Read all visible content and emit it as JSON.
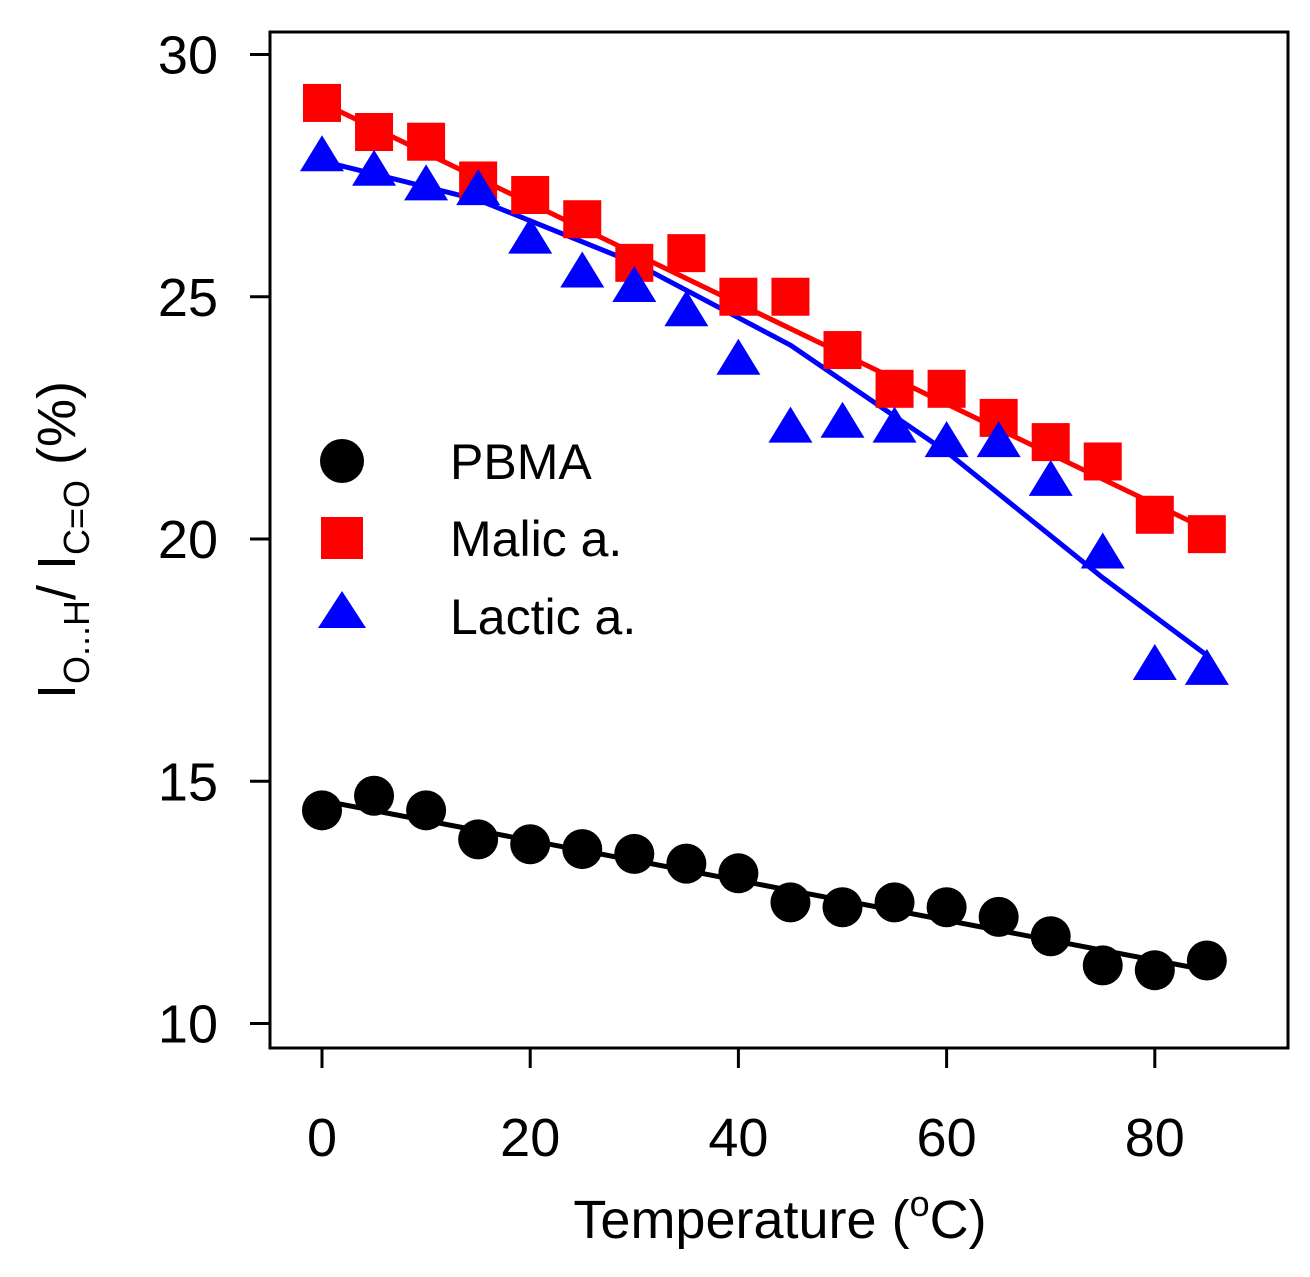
{
  "chart_data": {
    "type": "scatter",
    "xlabel": "Temperature (°C)",
    "xlabel_parts": {
      "main": "Temperature (",
      "sup": "o",
      "tail": "C)"
    },
    "ylabel": "I_{O...H} / I_{C=O} (%)",
    "ylabel_parts": {
      "i1": "I",
      "sub1": "O...H",
      "slash": "/ ",
      "i2": "I",
      "sub2": "C=O",
      "tail": " (%)"
    },
    "xlim": [
      -5,
      92
    ],
    "ylim": [
      9.5,
      30.5
    ],
    "xticks": [
      0,
      20,
      40,
      60,
      80
    ],
    "yticks": [
      10,
      15,
      20,
      25,
      30
    ],
    "legend_position": "center-left",
    "series": [
      {
        "name": "PBMA",
        "marker": "circle",
        "color": "#000000",
        "x": [
          0,
          5,
          10,
          15,
          20,
          25,
          30,
          35,
          40,
          45,
          50,
          55,
          60,
          65,
          70,
          75,
          80,
          85
        ],
        "y": [
          14.4,
          14.7,
          14.4,
          13.8,
          13.7,
          13.6,
          13.5,
          13.3,
          13.1,
          12.5,
          12.4,
          12.5,
          12.4,
          12.2,
          11.8,
          11.2,
          11.1,
          11.3
        ],
        "fit": [
          [
            0,
            14.6
          ],
          [
            85,
            11.1
          ]
        ]
      },
      {
        "name": "Malic a.",
        "marker": "square",
        "color": "#ff0000",
        "x": [
          0,
          5,
          10,
          15,
          20,
          25,
          30,
          35,
          40,
          45,
          50,
          55,
          60,
          65,
          70,
          75,
          80,
          85
        ],
        "y": [
          29.0,
          28.4,
          28.2,
          27.4,
          27.1,
          26.6,
          25.7,
          25.9,
          25.0,
          25.0,
          23.9,
          23.1,
          23.1,
          22.5,
          22.0,
          21.6,
          20.5,
          20.1
        ],
        "fit": [
          [
            0,
            29.0
          ],
          [
            85,
            20.2
          ]
        ]
      },
      {
        "name": "Lactic a.",
        "marker": "triangle",
        "color": "#0000ff",
        "x": [
          0,
          5,
          10,
          15,
          20,
          25,
          30,
          35,
          40,
          45,
          50,
          55,
          60,
          65,
          70,
          75,
          80,
          85
        ],
        "y": [
          27.9,
          27.6,
          27.3,
          27.2,
          26.2,
          25.5,
          25.2,
          24.7,
          23.7,
          22.3,
          22.4,
          22.3,
          22.0,
          22.0,
          21.2,
          19.7,
          17.4,
          17.3
        ],
        "fit": [
          [
            0,
            27.8
          ],
          [
            15,
            27.0
          ],
          [
            30,
            25.7
          ],
          [
            45,
            24.0
          ],
          [
            60,
            21.8
          ],
          [
            75,
            19.2
          ],
          [
            85,
            17.6
          ]
        ]
      }
    ]
  }
}
